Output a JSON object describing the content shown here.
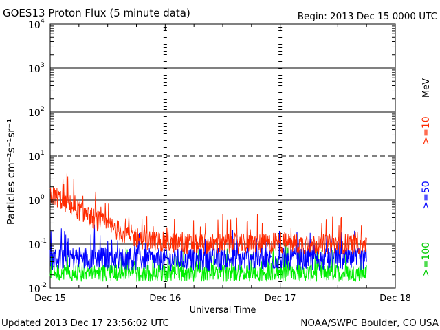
{
  "chart_data": {
    "type": "line",
    "title": "GOES13 Proton Flux (5 minute data)",
    "begin_label": "Begin: 2013 Dec 15 0000 UTC",
    "xlabel": "Universal Time",
    "ylabel": "Particles cm⁻²s⁻¹sr⁻¹",
    "x_unit": "days since 2013 Dec 15 00:00 UTC",
    "xlim": [
      0,
      3
    ],
    "ylim_log10": [
      -2,
      4
    ],
    "x_ticks": [
      {
        "value": 0,
        "label": "Dec 15"
      },
      {
        "value": 1,
        "label": "Dec 16"
      },
      {
        "value": 2,
        "label": "Dec 17"
      },
      {
        "value": 3,
        "label": "Dec 18"
      }
    ],
    "y_ticks": [
      {
        "exp": -2,
        "base": "10",
        "power": "-2"
      },
      {
        "exp": -1,
        "base": "10",
        "power": "-1"
      },
      {
        "exp": 0,
        "base": "10",
        "power": "0"
      },
      {
        "exp": 1,
        "base": "10",
        "power": "1"
      },
      {
        "exp": 2,
        "base": "10",
        "power": "2"
      },
      {
        "exp": 3,
        "base": "10",
        "power": "3"
      },
      {
        "exp": 4,
        "base": "10",
        "power": "4"
      }
    ],
    "threshold_lines": [
      {
        "exp": 0,
        "style": "solid"
      },
      {
        "exp": 1,
        "style": "dashed"
      },
      {
        "exp": 2,
        "style": "solid"
      },
      {
        "exp": 3,
        "style": "solid"
      },
      {
        "exp": -1,
        "style": "solid"
      }
    ],
    "legend_unit": "MeV",
    "series": [
      {
        "name": ">=10",
        "color": "#ff2a00",
        "x": [
          0.0,
          0.05,
          0.1,
          0.2,
          0.3,
          0.4,
          0.5,
          0.6,
          0.7,
          0.8,
          0.9,
          1.0,
          1.1,
          1.2,
          1.4,
          1.6,
          1.8,
          2.0,
          2.2,
          2.4,
          2.6,
          2.75
        ],
        "values": [
          1.3,
          1.2,
          1.0,
          0.7,
          0.5,
          0.35,
          0.26,
          0.2,
          0.15,
          0.13,
          0.12,
          0.11,
          0.105,
          0.1,
          0.1,
          0.1,
          0.1,
          0.105,
          0.1,
          0.1,
          0.1,
          0.1
        ]
      },
      {
        "name": ">=50",
        "color": "#0000ff",
        "x": [
          0.0,
          0.25,
          0.5,
          0.75,
          1.0,
          1.25,
          1.5,
          1.75,
          2.0,
          2.25,
          2.5,
          2.75
        ],
        "values": [
          0.045,
          0.05,
          0.048,
          0.045,
          0.044,
          0.045,
          0.045,
          0.045,
          0.046,
          0.045,
          0.045,
          0.045
        ]
      },
      {
        "name": ">=100",
        "color": "#00ee00",
        "x": [
          0.0,
          0.25,
          0.5,
          0.75,
          1.0,
          1.25,
          1.5,
          1.75,
          2.0,
          2.25,
          2.5,
          2.75
        ],
        "values": [
          0.022,
          0.022,
          0.022,
          0.022,
          0.022,
          0.022,
          0.022,
          0.022,
          0.022,
          0.022,
          0.022,
          0.022
        ]
      }
    ]
  },
  "footer": {
    "updated": "Updated 2013 Dec 17 23:56:02 UTC",
    "credit": "NOAA/SWPC Boulder, CO USA"
  }
}
